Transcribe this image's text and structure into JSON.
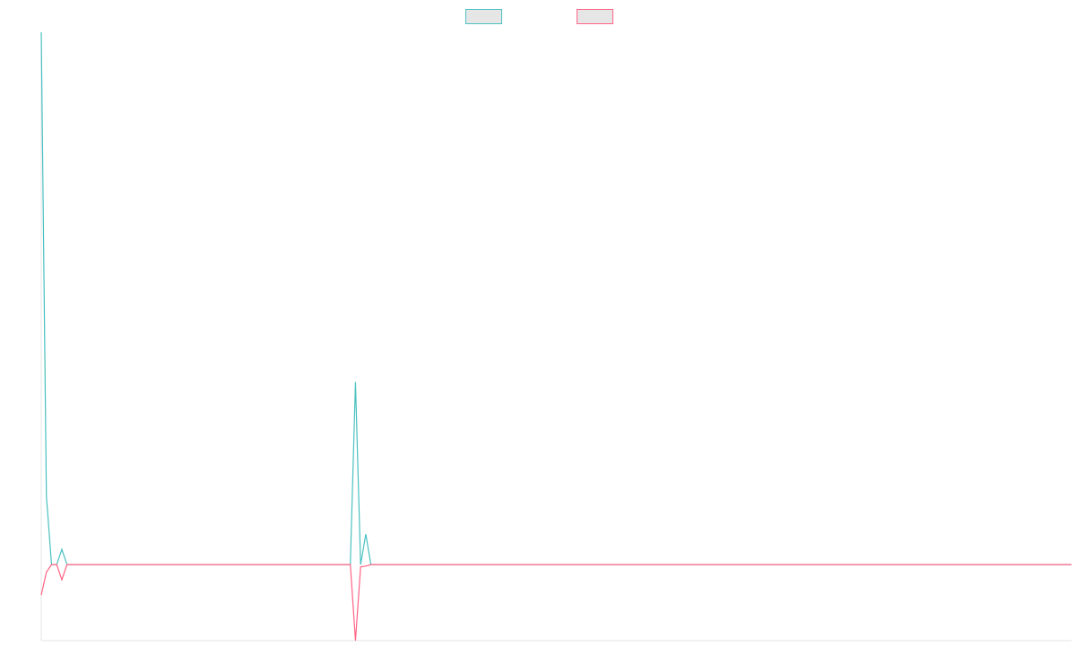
{
  "chart_data": {
    "type": "line",
    "title": "",
    "xlabel": "",
    "ylabel": "",
    "legend": {
      "placement": "top-center",
      "entries": [
        {
          "name": "",
          "color": "#4bc0c0",
          "fill": "#e6e6e6"
        },
        {
          "name": "",
          "color": "#ff6384",
          "fill": "#e6e6e6"
        }
      ]
    },
    "grid": false,
    "x_count": 201,
    "ylim": [
      -10,
      70
    ],
    "series": [
      {
        "name": "",
        "color": "#4bc0c0",
        "points": [
          [
            0,
            70
          ],
          [
            1,
            9
          ],
          [
            2,
            0
          ],
          [
            3,
            0
          ],
          [
            4,
            2
          ],
          [
            5,
            0
          ],
          [
            60,
            0
          ],
          [
            61,
            24
          ],
          [
            62,
            0
          ],
          [
            63,
            4
          ],
          [
            64,
            0
          ],
          [
            200,
            0
          ]
        ]
      },
      {
        "name": "",
        "color": "#ff6384",
        "points": [
          [
            0,
            -4
          ],
          [
            1,
            -1
          ],
          [
            2,
            0
          ],
          [
            3,
            0
          ],
          [
            4,
            -2
          ],
          [
            5,
            0
          ],
          [
            60,
            0
          ],
          [
            61,
            -10
          ],
          [
            62,
            -0.3
          ],
          [
            63,
            -0.2
          ],
          [
            64,
            0
          ],
          [
            200,
            0
          ]
        ]
      }
    ]
  }
}
